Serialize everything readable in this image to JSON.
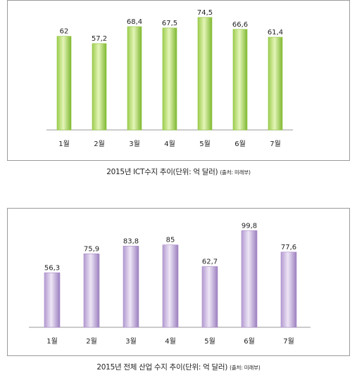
{
  "chart_data": [
    {
      "type": "bar",
      "categories": [
        "1월",
        "2월",
        "3월",
        "4월",
        "5월",
        "6월",
        "7월"
      ],
      "values": [
        62,
        57.2,
        68.4,
        67.5,
        74.5,
        66.6,
        61.4
      ],
      "value_labels": [
        "62",
        "57,2",
        "68,4",
        "67,5",
        "74,5",
        "66,6",
        "61,4"
      ],
      "title": "2015년 ICT수지 추이(단위: 억 달러)",
      "source": "(출처: 미래부)",
      "color": "#8cc43a",
      "ylim": [
        0,
        80
      ],
      "grid": false
    },
    {
      "type": "bar",
      "categories": [
        "1월",
        "2월",
        "3월",
        "4월",
        "5월",
        "6월",
        "7월"
      ],
      "values": [
        56.3,
        75.9,
        83.8,
        85,
        62.7,
        99.8,
        77.6
      ],
      "value_labels": [
        "56,3",
        "75,9",
        "83,8",
        "85",
        "62,7",
        "99,8",
        "77,6"
      ],
      "title": "2015년 전체 산업 수지 추이(단위: 억 달러)",
      "source": "(출처: 미래부)",
      "color": "#a98bc8",
      "ylim": [
        0,
        100
      ],
      "grid": false
    }
  ]
}
